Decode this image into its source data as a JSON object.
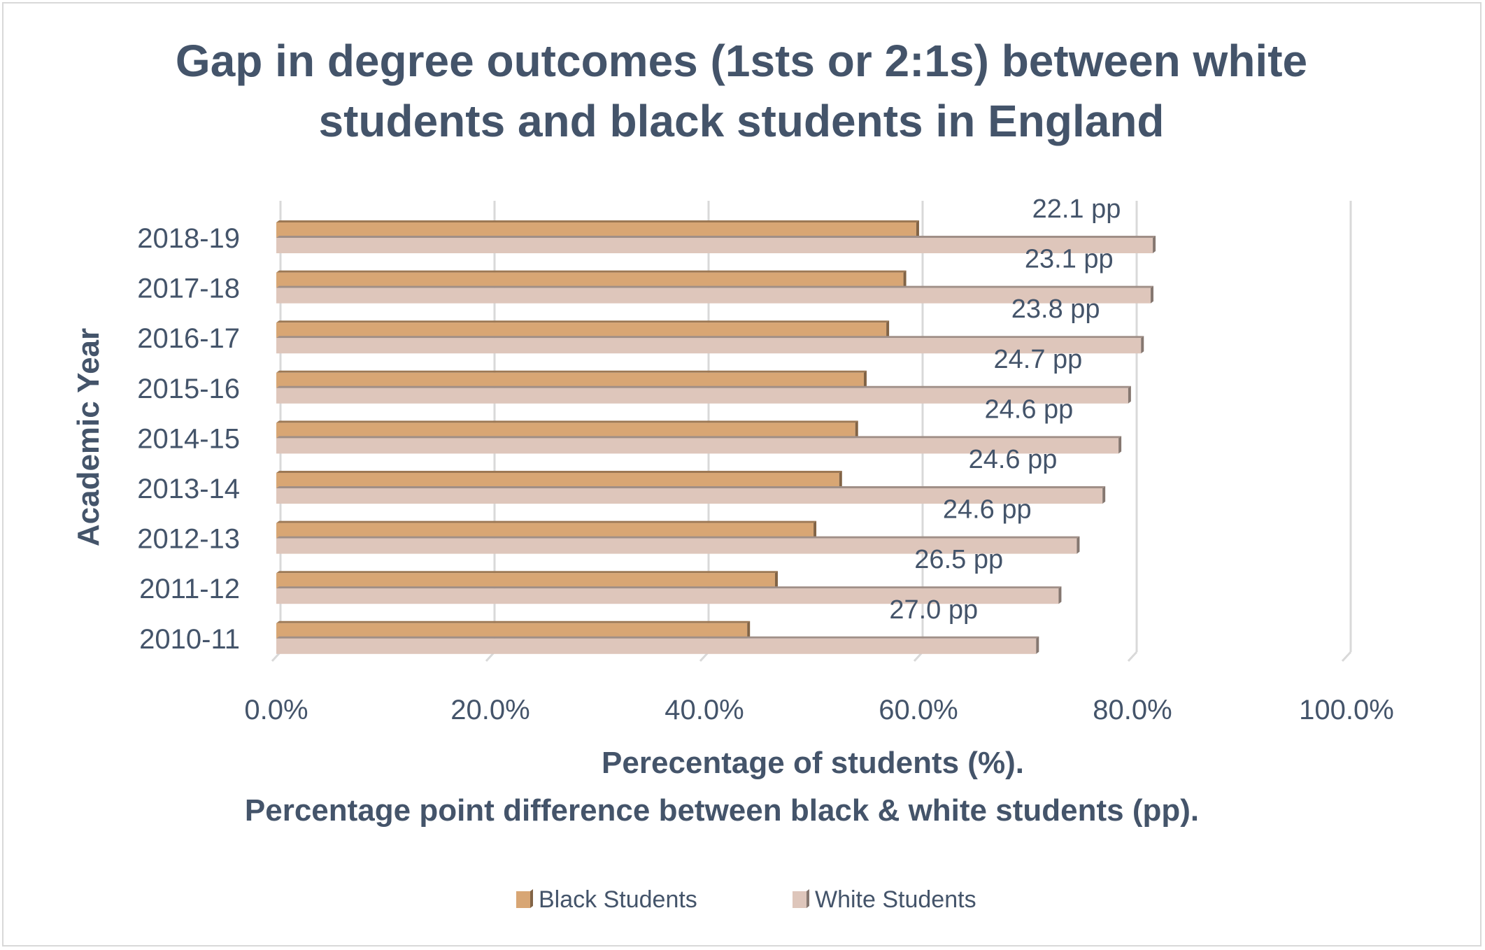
{
  "chart_data": {
    "type": "bar",
    "orientation": "horizontal",
    "title": "Gap in degree outcomes (1sts or 2:1s) between white students and black students in England",
    "title_lines": [
      "Gap in degree outcomes (1sts or 2:1s) between white",
      "students and black students in England"
    ],
    "xlabel": "Perecentage of students (%).",
    "xlabel_line2": "Percentage point difference between black & white students (pp).",
    "ylabel": "Academic Year",
    "xlim": [
      0,
      100
    ],
    "x_ticks": [
      "0.0%",
      "20.0%",
      "40.0%",
      "60.0%",
      "80.0%",
      "100.0%"
    ],
    "grid": true,
    "legend_position": "bottom",
    "categories": [
      "2010-11",
      "2011-12",
      "2012-13",
      "2013-14",
      "2014-15",
      "2015-16",
      "2016-17",
      "2017-18",
      "2018-19"
    ],
    "series": [
      {
        "name": "Black Students",
        "color": "#d8a674",
        "values": [
          44.0,
          46.6,
          50.2,
          52.6,
          54.1,
          54.9,
          57.0,
          58.6,
          59.8
        ]
      },
      {
        "name": "White Students",
        "color": "#dec6bb",
        "values": [
          71.0,
          73.1,
          74.8,
          77.2,
          78.7,
          79.6,
          80.8,
          81.7,
          81.9
        ]
      }
    ],
    "gap_labels": [
      "27.0 pp",
      "26.5 pp",
      "24.6 pp",
      "24.6 pp",
      "24.6 pp",
      "24.7 pp",
      "23.8 pp",
      "23.1 pp",
      "22.1 pp"
    ]
  }
}
